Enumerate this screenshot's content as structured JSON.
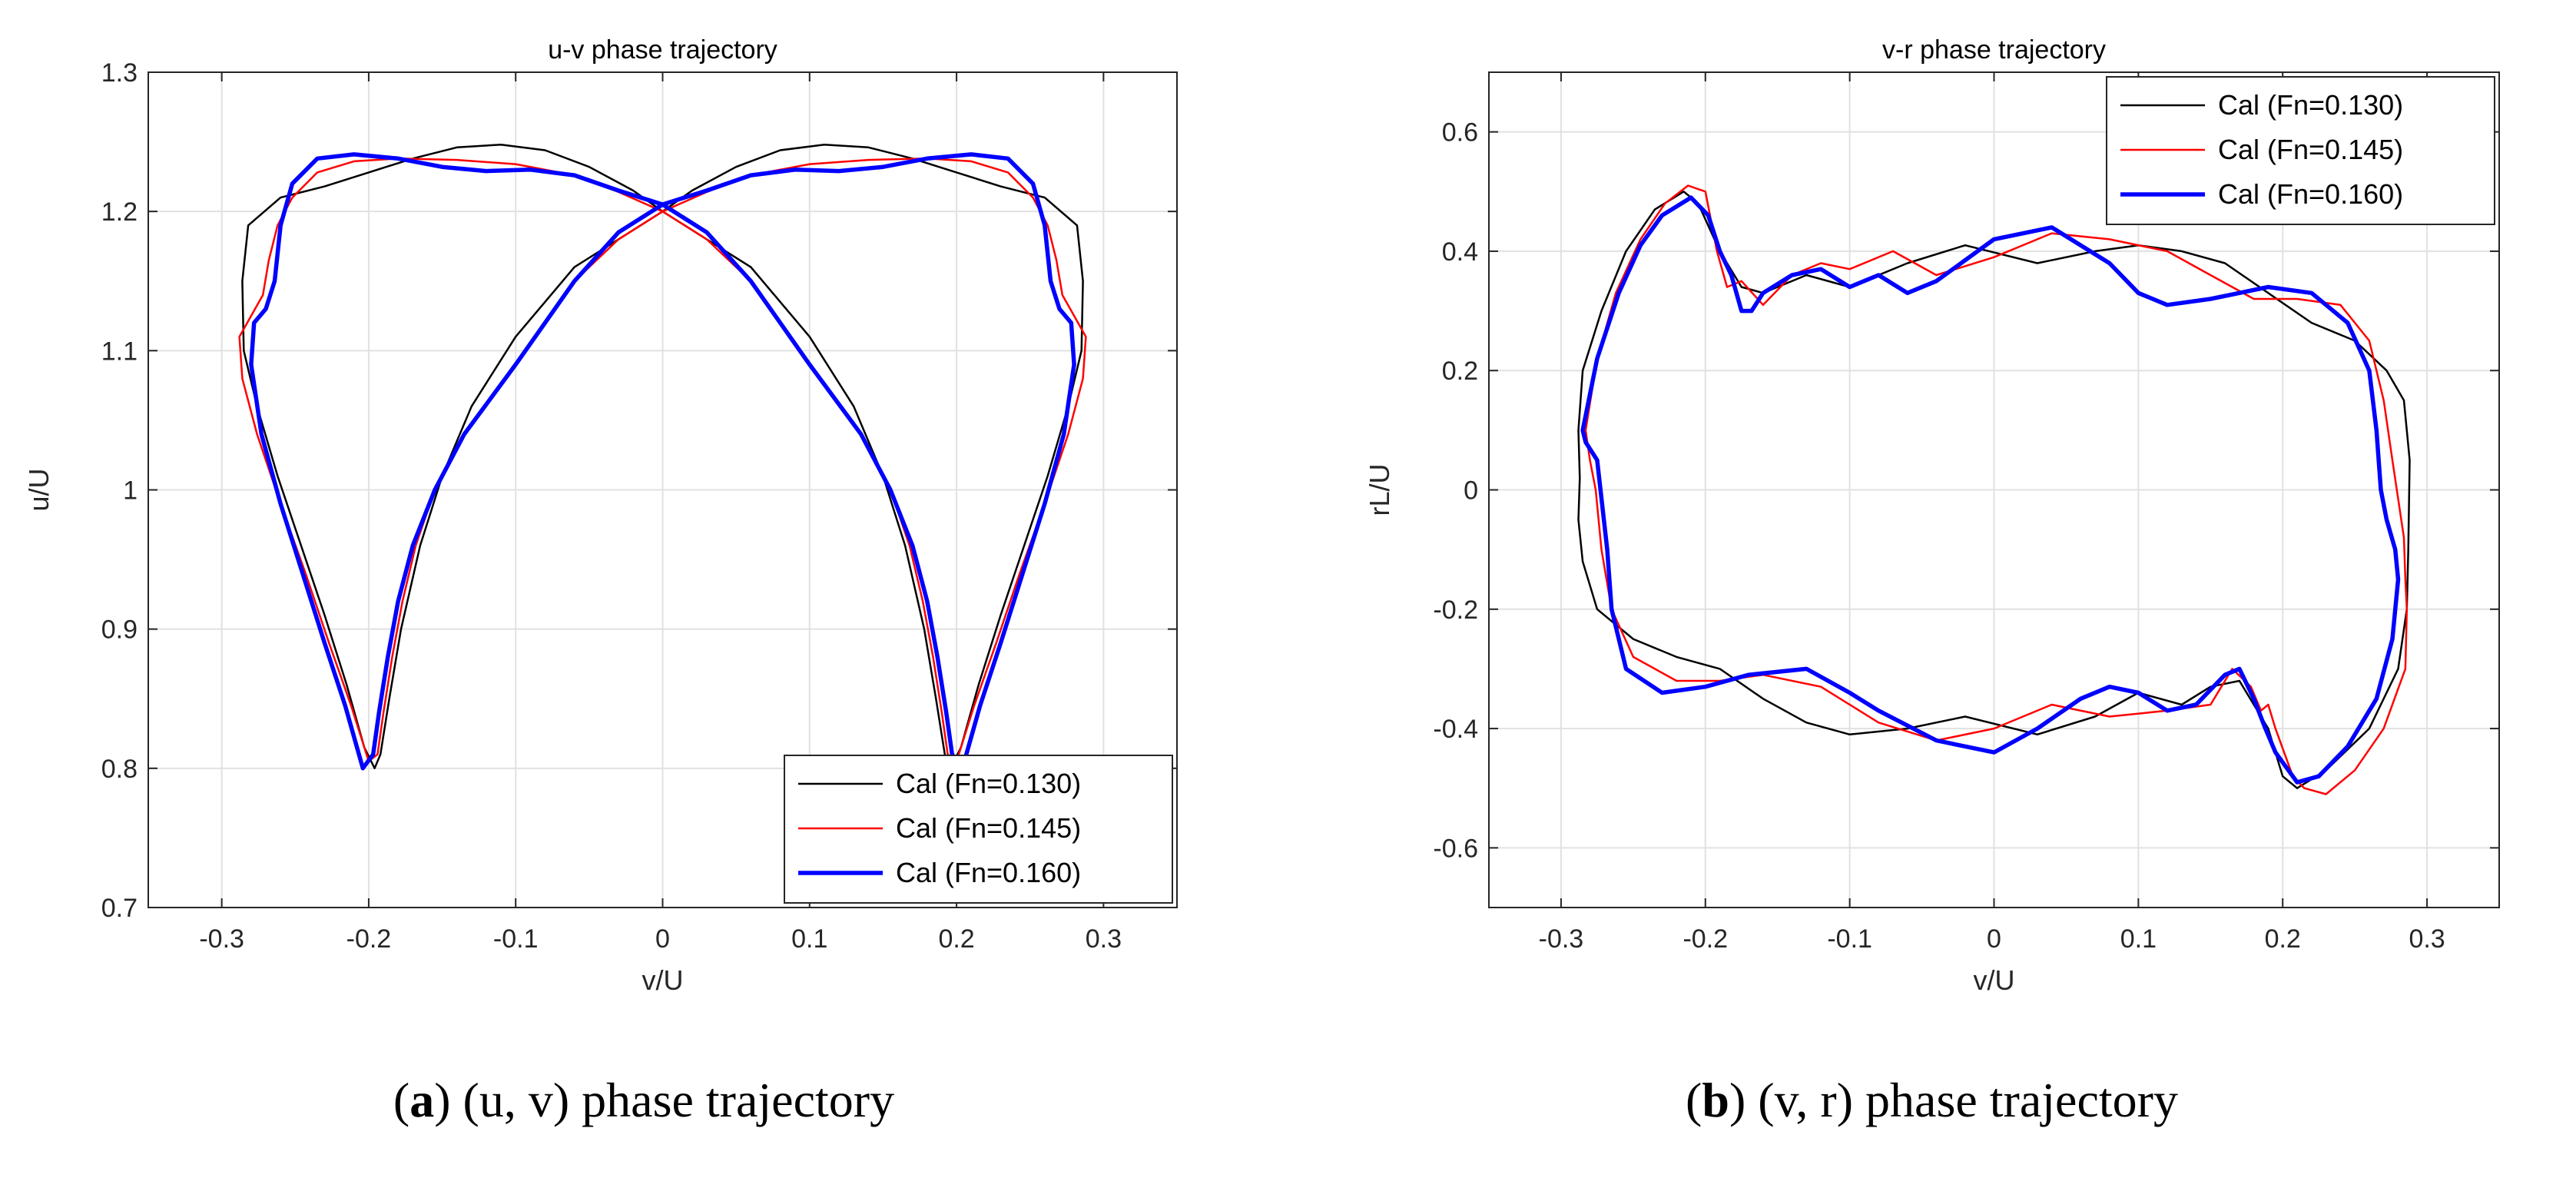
{
  "chart_data": [
    {
      "type": "line",
      "panel": "a",
      "title": "u-v phase trajectory",
      "xlabel": "v/U",
      "ylabel": "u/U",
      "xlim": [
        -0.35,
        0.35
      ],
      "ylim": [
        0.7,
        1.3
      ],
      "xticks": [
        -0.3,
        -0.2,
        -0.1,
        0,
        0.1,
        0.2,
        0.3
      ],
      "xtick_labels": [
        "-0.3",
        "-0.2",
        "-0.1",
        "0",
        "0.1",
        "0.2",
        "0.3"
      ],
      "yticks": [
        0.7,
        0.8,
        0.9,
        1.0,
        1.1,
        1.2,
        1.3
      ],
      "ytick_labels": [
        "0.7",
        "0.8",
        "0.9",
        "1",
        "1.1",
        "1.2",
        "1.3"
      ],
      "grid": true,
      "legend_position": "bottom-right",
      "series": [
        {
          "name": "Cal (Fn=0.130)",
          "color": "#000000",
          "width": 2.5,
          "x": [
            0,
            -0.02,
            -0.05,
            -0.08,
            -0.11,
            -0.14,
            -0.17,
            -0.2,
            -0.23,
            -0.26,
            -0.282,
            -0.286,
            -0.285,
            -0.276,
            -0.262,
            -0.246,
            -0.23,
            -0.215,
            -0.203,
            -0.196,
            -0.192,
            -0.186,
            -0.178,
            -0.165,
            -0.15,
            -0.13,
            -0.1,
            -0.06,
            -0.03,
            0,
            0.03,
            0.06,
            0.1,
            0.13,
            0.15,
            0.165,
            0.178,
            0.186,
            0.192,
            0.196,
            0.203,
            0.215,
            0.23,
            0.246,
            0.262,
            0.276,
            0.285,
            0.286,
            0.282,
            0.26,
            0.23,
            0.2,
            0.17,
            0.14,
            0.11,
            0.08,
            0.05,
            0.02,
            0
          ],
          "y": [
            1.2,
            1.215,
            1.232,
            1.244,
            1.248,
            1.246,
            1.238,
            1.228,
            1.218,
            1.21,
            1.19,
            1.15,
            1.1,
            1.06,
            1.01,
            0.96,
            0.91,
            0.86,
            0.815,
            0.8,
            0.81,
            0.85,
            0.9,
            0.96,
            1.01,
            1.06,
            1.11,
            1.16,
            1.18,
            1.2,
            1.18,
            1.16,
            1.11,
            1.06,
            1.01,
            0.96,
            0.9,
            0.85,
            0.81,
            0.8,
            0.815,
            0.86,
            0.91,
            0.96,
            1.01,
            1.06,
            1.1,
            1.15,
            1.19,
            1.21,
            1.218,
            1.228,
            1.238,
            1.246,
            1.248,
            1.244,
            1.232,
            1.215,
            1.2
          ]
        },
        {
          "name": "Cal (Fn=0.145)",
          "color": "#ff0000",
          "width": 2.5,
          "x": [
            0,
            -0.03,
            -0.06,
            -0.1,
            -0.14,
            -0.18,
            -0.21,
            -0.235,
            -0.252,
            -0.262,
            -0.268,
            -0.272,
            -0.28,
            -0.288,
            -0.286,
            -0.276,
            -0.26,
            -0.243,
            -0.227,
            -0.212,
            -0.2,
            -0.194,
            -0.19,
            -0.184,
            -0.177,
            -0.168,
            -0.155,
            -0.135,
            -0.1,
            -0.06,
            -0.03,
            0,
            0.03,
            0.06,
            0.1,
            0.135,
            0.155,
            0.168,
            0.177,
            0.184,
            0.19,
            0.194,
            0.2,
            0.212,
            0.227,
            0.243,
            0.26,
            0.276,
            0.286,
            0.288,
            0.28,
            0.272,
            0.268,
            0.262,
            0.252,
            0.235,
            0.21,
            0.18,
            0.14,
            0.1,
            0.06,
            0.03,
            0
          ],
          "y": [
            1.2,
            1.214,
            1.226,
            1.234,
            1.237,
            1.238,
            1.236,
            1.228,
            1.21,
            1.19,
            1.165,
            1.14,
            1.125,
            1.11,
            1.08,
            1.04,
            0.99,
            0.94,
            0.89,
            0.845,
            0.805,
            0.81,
            0.84,
            0.88,
            0.92,
            0.96,
            1.0,
            1.04,
            1.09,
            1.15,
            1.18,
            1.2,
            1.18,
            1.15,
            1.09,
            1.04,
            1.0,
            0.96,
            0.92,
            0.88,
            0.84,
            0.81,
            0.805,
            0.845,
            0.89,
            0.94,
            0.99,
            1.04,
            1.08,
            1.11,
            1.125,
            1.14,
            1.165,
            1.19,
            1.21,
            1.228,
            1.236,
            1.238,
            1.237,
            1.234,
            1.226,
            1.214,
            1.2
          ]
        },
        {
          "name": "Cal (Fn=0.160)",
          "color": "#0000ff",
          "width": 5.5,
          "x": [
            0,
            -0.03,
            -0.06,
            -0.09,
            -0.12,
            -0.15,
            -0.18,
            -0.21,
            -0.235,
            -0.252,
            -0.26,
            -0.264,
            -0.27,
            -0.278,
            -0.28,
            -0.273,
            -0.26,
            -0.245,
            -0.23,
            -0.216,
            -0.204,
            -0.197,
            -0.193,
            -0.187,
            -0.18,
            -0.17,
            -0.155,
            -0.135,
            -0.1,
            -0.06,
            -0.03,
            0,
            0.03,
            0.06,
            0.1,
            0.135,
            0.155,
            0.17,
            0.18,
            0.187,
            0.193,
            0.197,
            0.204,
            0.216,
            0.23,
            0.245,
            0.26,
            0.273,
            0.28,
            0.278,
            0.27,
            0.264,
            0.26,
            0.252,
            0.235,
            0.21,
            0.18,
            0.15,
            0.12,
            0.09,
            0.06,
            0.03,
            0
          ],
          "y": [
            1.205,
            1.215,
            1.226,
            1.23,
            1.229,
            1.232,
            1.238,
            1.241,
            1.238,
            1.22,
            1.19,
            1.15,
            1.13,
            1.12,
            1.09,
            1.04,
            0.99,
            0.94,
            0.89,
            0.845,
            0.8,
            0.81,
            0.84,
            0.88,
            0.92,
            0.96,
            1.0,
            1.04,
            1.09,
            1.15,
            1.185,
            1.205,
            1.185,
            1.15,
            1.09,
            1.04,
            1.0,
            0.96,
            0.92,
            0.88,
            0.84,
            0.81,
            0.8,
            0.845,
            0.89,
            0.94,
            0.99,
            1.04,
            1.09,
            1.12,
            1.13,
            1.15,
            1.19,
            1.22,
            1.238,
            1.241,
            1.238,
            1.232,
            1.229,
            1.23,
            1.226,
            1.215,
            1.205
          ]
        }
      ]
    },
    {
      "type": "line",
      "panel": "b",
      "title": "v-r phase trajectory",
      "xlabel": "v/U",
      "ylabel": "rL/U",
      "xlim": [
        -0.35,
        0.35
      ],
      "ylim": [
        -0.7,
        0.7
      ],
      "xticks": [
        -0.3,
        -0.2,
        -0.1,
        0,
        0.1,
        0.2,
        0.3
      ],
      "xtick_labels": [
        "-0.3",
        "-0.2",
        "-0.1",
        "0",
        "0.1",
        "0.2",
        "0.3"
      ],
      "yticks": [
        -0.6,
        -0.4,
        -0.2,
        0,
        0.2,
        0.4,
        0.6
      ],
      "ytick_labels": [
        "-0.6",
        "-0.4",
        "-0.2",
        "0",
        "0.2",
        "0.4",
        "0.6"
      ],
      "grid": true,
      "legend_position": "top-right",
      "series": [
        {
          "name": "Cal (Fn=0.130)",
          "color": "#000000",
          "width": 2.5,
          "x": [
            -0.288,
            -0.285,
            -0.272,
            -0.255,
            -0.235,
            -0.215,
            -0.205,
            -0.19,
            -0.175,
            -0.16,
            -0.13,
            -0.1,
            -0.06,
            -0.02,
            0.03,
            0.07,
            0.1,
            0.13,
            0.16,
            0.19,
            0.22,
            0.25,
            0.272,
            0.284,
            0.288,
            0.287,
            0.286,
            0.28,
            0.26,
            0.23,
            0.21,
            0.2,
            0.19,
            0.17,
            0.15,
            0.13,
            0.1,
            0.07,
            0.03,
            -0.02,
            -0.06,
            -0.1,
            -0.13,
            -0.16,
            -0.19,
            -0.22,
            -0.25,
            -0.275,
            -0.285,
            -0.288,
            -0.287,
            -0.288
          ],
          "y": [
            0.1,
            0.2,
            0.3,
            0.4,
            0.47,
            0.5,
            0.48,
            0.4,
            0.34,
            0.33,
            0.36,
            0.34,
            0.38,
            0.41,
            0.38,
            0.4,
            0.41,
            0.4,
            0.38,
            0.33,
            0.28,
            0.25,
            0.2,
            0.15,
            0.05,
            -0.1,
            -0.2,
            -0.3,
            -0.4,
            -0.47,
            -0.5,
            -0.48,
            -0.4,
            -0.32,
            -0.33,
            -0.36,
            -0.34,
            -0.38,
            -0.41,
            -0.38,
            -0.4,
            -0.41,
            -0.39,
            -0.35,
            -0.3,
            -0.28,
            -0.25,
            -0.2,
            -0.12,
            -0.05,
            0.02,
            0.1
          ]
        },
        {
          "name": "Cal (Fn=0.145)",
          "color": "#ff0000",
          "width": 2.5,
          "x": [
            -0.283,
            -0.275,
            -0.262,
            -0.245,
            -0.228,
            -0.212,
            -0.2,
            -0.192,
            -0.185,
            -0.175,
            -0.16,
            -0.14,
            -0.12,
            -0.1,
            -0.07,
            -0.04,
            0,
            0.04,
            0.08,
            0.12,
            0.15,
            0.18,
            0.21,
            0.24,
            0.26,
            0.27,
            0.276,
            0.284,
            0.285,
            0.286,
            0.285,
            0.27,
            0.25,
            0.23,
            0.215,
            0.207,
            0.195,
            0.19,
            0.185,
            0.178,
            0.165,
            0.15,
            0.12,
            0.08,
            0.04,
            0,
            -0.04,
            -0.08,
            -0.12,
            -0.16,
            -0.19,
            -0.22,
            -0.25,
            -0.265,
            -0.272,
            -0.276,
            -0.28,
            -0.283
          ],
          "y": [
            0.1,
            0.22,
            0.33,
            0.42,
            0.48,
            0.51,
            0.5,
            0.4,
            0.34,
            0.35,
            0.31,
            0.36,
            0.38,
            0.37,
            0.4,
            0.36,
            0.39,
            0.43,
            0.42,
            0.4,
            0.36,
            0.32,
            0.32,
            0.31,
            0.25,
            0.15,
            0.05,
            -0.08,
            -0.15,
            -0.2,
            -0.3,
            -0.4,
            -0.47,
            -0.51,
            -0.5,
            -0.48,
            -0.4,
            -0.36,
            -0.37,
            -0.33,
            -0.3,
            -0.36,
            -0.37,
            -0.38,
            -0.36,
            -0.4,
            -0.42,
            -0.39,
            -0.33,
            -0.31,
            -0.32,
            -0.32,
            -0.28,
            -0.2,
            -0.1,
            0,
            0.05,
            0.1
          ]
        },
        {
          "name": "Cal (Fn=0.160)",
          "color": "#0000ff",
          "width": 5.5,
          "x": [
            -0.285,
            -0.275,
            -0.26,
            -0.245,
            -0.23,
            -0.21,
            -0.198,
            -0.19,
            -0.182,
            -0.175,
            -0.168,
            -0.16,
            -0.14,
            -0.12,
            -0.1,
            -0.08,
            -0.06,
            -0.04,
            0,
            0.04,
            0.08,
            0.1,
            0.12,
            0.15,
            0.19,
            0.22,
            0.245,
            0.26,
            0.265,
            0.268,
            0.272,
            0.278,
            0.28,
            0.276,
            0.265,
            0.245,
            0.225,
            0.21,
            0.195,
            0.188,
            0.18,
            0.17,
            0.16,
            0.14,
            0.12,
            0.1,
            0.08,
            0.06,
            0.03,
            0,
            -0.04,
            -0.08,
            -0.1,
            -0.13,
            -0.17,
            -0.2,
            -0.23,
            -0.255,
            -0.265,
            -0.268,
            -0.275,
            -0.283,
            -0.285
          ],
          "y": [
            0.1,
            0.22,
            0.33,
            0.41,
            0.46,
            0.49,
            0.46,
            0.4,
            0.36,
            0.3,
            0.3,
            0.33,
            0.36,
            0.37,
            0.34,
            0.36,
            0.33,
            0.35,
            0.42,
            0.44,
            0.38,
            0.33,
            0.31,
            0.32,
            0.34,
            0.33,
            0.28,
            0.2,
            0.1,
            0,
            -0.05,
            -0.1,
            -0.15,
            -0.25,
            -0.35,
            -0.43,
            -0.48,
            -0.49,
            -0.44,
            -0.4,
            -0.35,
            -0.3,
            -0.31,
            -0.36,
            -0.37,
            -0.34,
            -0.33,
            -0.35,
            -0.4,
            -0.44,
            -0.42,
            -0.37,
            -0.34,
            -0.3,
            -0.31,
            -0.33,
            -0.34,
            -0.3,
            -0.2,
            -0.1,
            0.05,
            0.08,
            0.1
          ]
        }
      ]
    }
  ],
  "captions": {
    "a": {
      "letter": "a",
      "text": " (u, v) phase trajectory"
    },
    "b": {
      "letter": "b",
      "text": " (v, r) phase trajectory"
    }
  }
}
